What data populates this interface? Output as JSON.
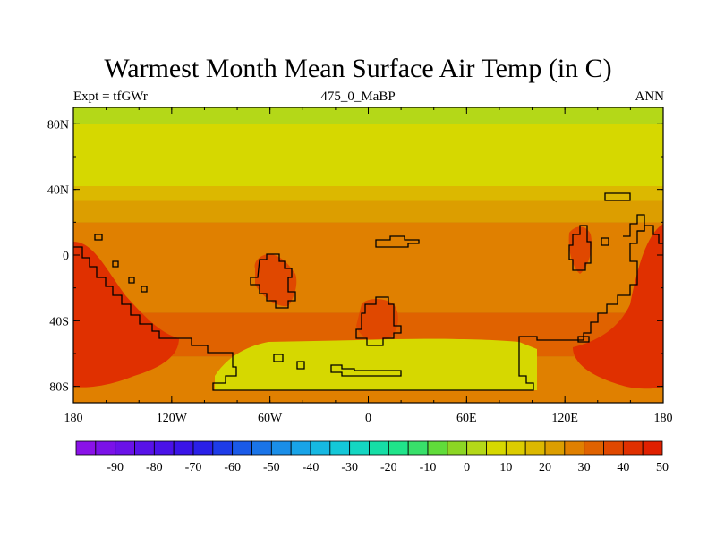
{
  "title": "Warmest Month Mean Surface Air Temp (in C)",
  "subtitle_left": "Expt = tfGWr",
  "subtitle_center": "475_0_MaBP",
  "subtitle_right": "ANN",
  "chart_data": {
    "type": "heatmap",
    "projection": "cylindrical-equidistant",
    "x_range": [
      -180,
      180
    ],
    "y_range": [
      -90,
      90
    ],
    "lon_ticks": [
      {
        "value": -180,
        "label": "180"
      },
      {
        "value": -120,
        "label": "120W"
      },
      {
        "value": -60,
        "label": "60W"
      },
      {
        "value": 0,
        "label": "0"
      },
      {
        "value": 60,
        "label": "60E"
      },
      {
        "value": 120,
        "label": "120E"
      },
      {
        "value": 180,
        "label": "180"
      }
    ],
    "lat_ticks": [
      {
        "value": 80,
        "label": "80N"
      },
      {
        "value": 40,
        "label": "40N"
      },
      {
        "value": 0,
        "label": "0"
      },
      {
        "value": -40,
        "label": "40S"
      },
      {
        "value": -80,
        "label": "80S"
      }
    ],
    "colorbar": {
      "levels": [
        -95,
        -90,
        -85,
        -80,
        -75,
        -70,
        -65,
        -60,
        -55,
        -50,
        -45,
        -40,
        -35,
        -30,
        -25,
        -20,
        -15,
        -10,
        -5,
        0,
        5,
        10,
        15,
        20,
        25,
        30,
        35,
        40,
        45,
        50
      ],
      "labels": [
        "-90",
        "-80",
        "-70",
        "-60",
        "-50",
        "-40",
        "-30",
        "-20",
        "-10",
        "0",
        "10",
        "20",
        "30",
        "40",
        "50"
      ],
      "label_values": [
        -90,
        -80,
        -70,
        -60,
        -50,
        -40,
        -30,
        -20,
        -10,
        0,
        10,
        20,
        30,
        40,
        50
      ],
      "colors": [
        "#8a12e8",
        "#7b12e8",
        "#6a12e8",
        "#5812e8",
        "#4a12e8",
        "#3a14e8",
        "#2a20e8",
        "#1e3ce8",
        "#1a5ae8",
        "#1a74e8",
        "#1a8ee8",
        "#18a4e8",
        "#16b8e2",
        "#14c8d8",
        "#14d6c2",
        "#16dea6",
        "#20e48a",
        "#38e06a",
        "#60dc3a",
        "#8cd624",
        "#b4d818",
        "#d6d800",
        "#dccc00",
        "#dcb800",
        "#dc9e00",
        "#e08000",
        "#e06200",
        "#e04800",
        "#e03000",
        "#e02000"
      ]
    },
    "fields": {
      "background_zonal_bands": [
        {
          "lat": [
            90,
            80
          ],
          "value": 8
        },
        {
          "lat": [
            80,
            42
          ],
          "value": 14
        },
        {
          "lat": [
            42,
            33
          ],
          "value": 22
        },
        {
          "lat": [
            33,
            20
          ],
          "value": 27
        },
        {
          "lat": [
            20,
            -35
          ],
          "value": 32
        },
        {
          "lat": [
            -35,
            -62
          ],
          "value": 37
        },
        {
          "lat": [
            -62,
            -90
          ],
          "value": 32
        }
      ],
      "antarctic_land_mean": 12,
      "western_hot_region_mean": 45,
      "eastern_hot_region_mean": 45,
      "interior_land_mean": 40
    },
    "grid": false,
    "legend": "colorbar-bottom"
  }
}
